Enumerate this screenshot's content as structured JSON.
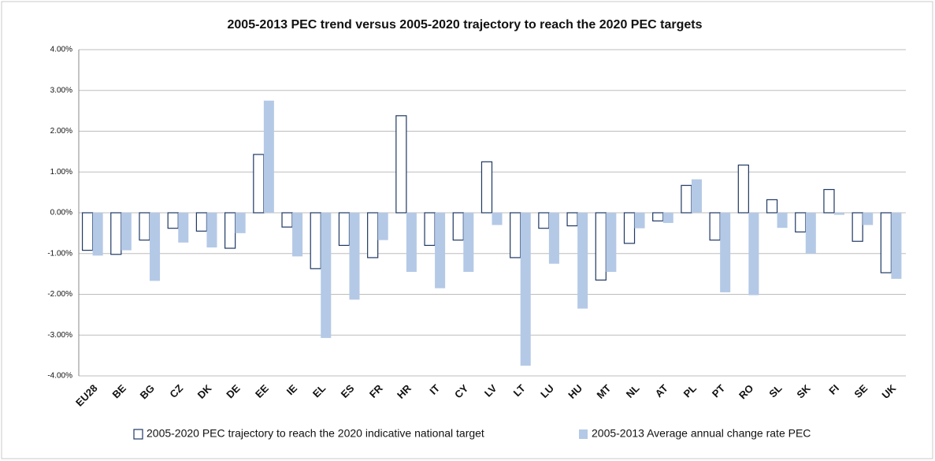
{
  "chart_data": {
    "type": "bar",
    "title": "2005-2013 PEC trend versus 2005-2020 trajectory to reach the 2020 PEC targets",
    "categories": [
      "EU28",
      "BE",
      "BG",
      "CZ",
      "DK",
      "DE",
      "EE",
      "IE",
      "EL",
      "ES",
      "FR",
      "HR",
      "IT",
      "CY",
      "LV",
      "LT",
      "LU",
      "HU",
      "MT",
      "NL",
      "AT",
      "PL",
      "PT",
      "RO",
      "SL",
      "SK",
      "FI",
      "SE",
      "UK"
    ],
    "series": [
      {
        "name": "2005-2020 PEC trajectory to reach the 2020 indicative national target",
        "color": "#ffffff",
        "outline": "#1f3864",
        "values": [
          -0.92,
          -1.02,
          -0.67,
          -0.38,
          -0.45,
          -0.87,
          1.43,
          -0.35,
          -1.37,
          -0.8,
          -1.1,
          2.38,
          -0.8,
          -0.67,
          1.25,
          -1.1,
          -0.38,
          -0.32,
          -1.65,
          -0.75,
          -0.2,
          0.67,
          -0.67,
          1.17,
          0.32,
          -0.47,
          0.57,
          -0.7,
          -1.47
        ]
      },
      {
        "name": "2005-2013 Average annual change rate PEC",
        "color": "#b4c9e6",
        "values": [
          -1.05,
          -0.92,
          -1.67,
          -0.73,
          -0.85,
          -0.5,
          2.75,
          -1.07,
          -3.07,
          -2.13,
          -0.67,
          -1.45,
          -1.85,
          -1.45,
          -0.3,
          -3.75,
          -1.25,
          -2.35,
          -1.45,
          -0.38,
          -0.25,
          0.82,
          -1.95,
          -2.02,
          -0.37,
          -1.0,
          -0.05,
          -0.3,
          -1.62
        ]
      }
    ],
    "ylim": [
      -4,
      4
    ],
    "yticks": [
      {
        "value": -4,
        "label": "-4.00%"
      },
      {
        "value": -3,
        "label": "-3.00%"
      },
      {
        "value": -2,
        "label": "-2.00%"
      },
      {
        "value": -1,
        "label": "-1.00%"
      },
      {
        "value": 0,
        "label": "0.00%"
      },
      {
        "value": 1,
        "label": "1.00%"
      },
      {
        "value": 2,
        "label": "2.00%"
      },
      {
        "value": 3,
        "label": "3.00%"
      },
      {
        "value": 4,
        "label": "4.00%"
      }
    ],
    "grid": true,
    "legend": "bottom"
  }
}
